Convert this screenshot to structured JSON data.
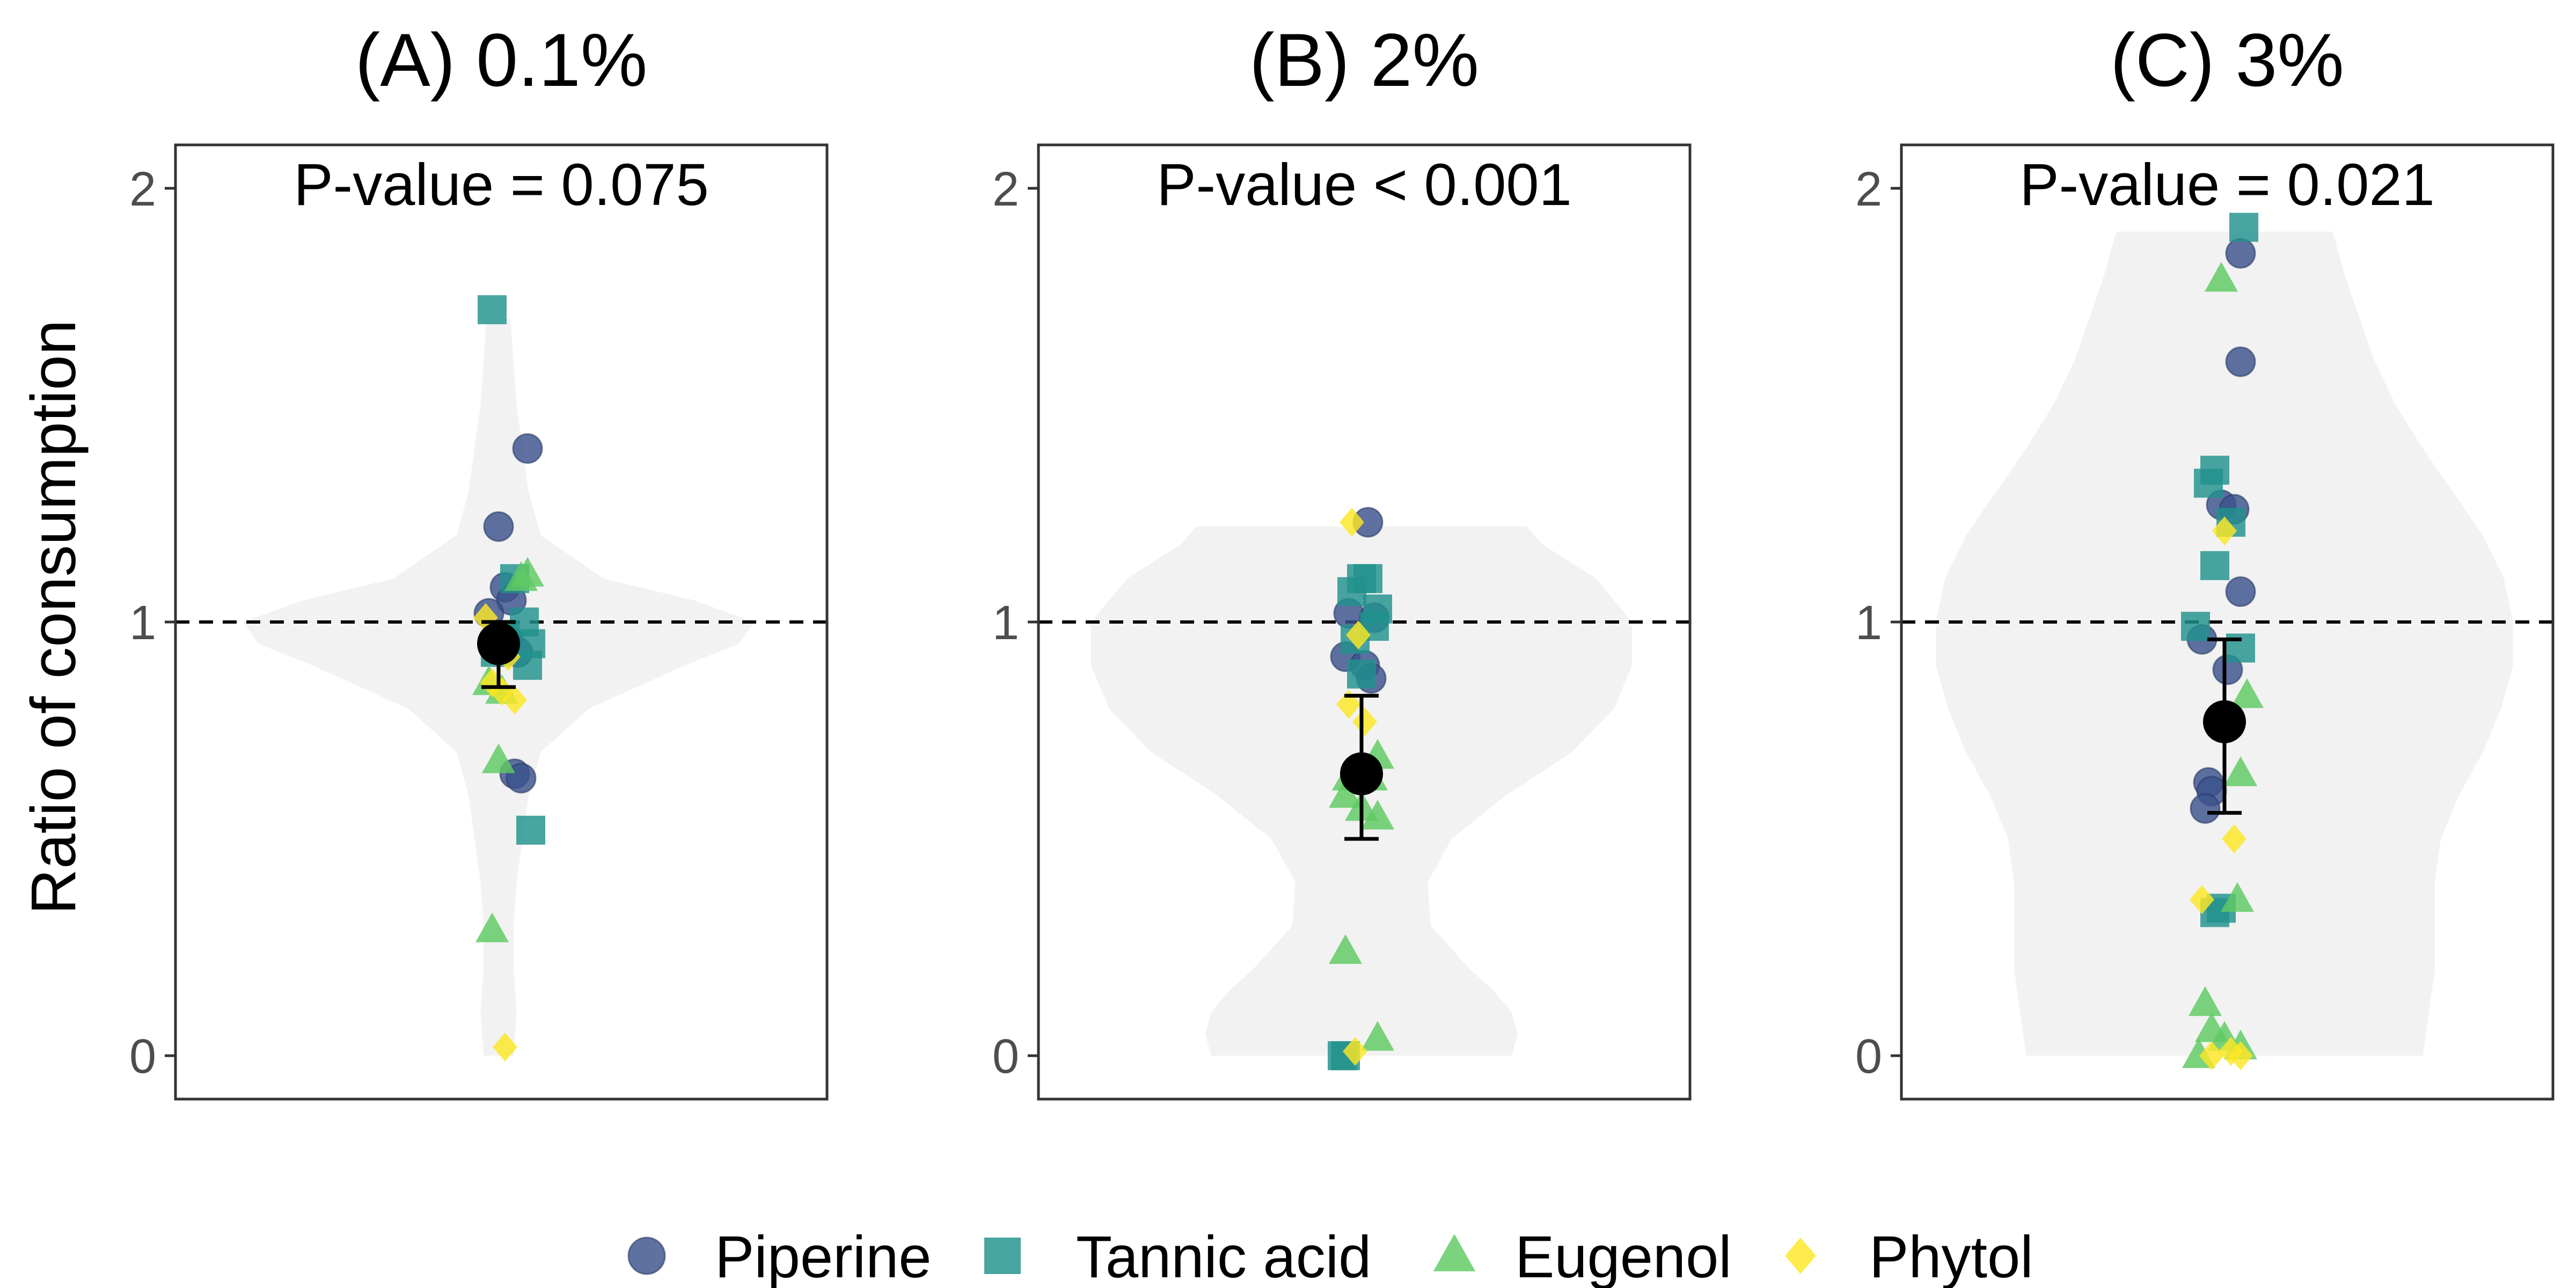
{
  "figure": {
    "ylabel": "Ratio of consumption",
    "legend": {
      "position": "bottom",
      "items": [
        {
          "name": "Piperine",
          "shape": "circle",
          "color": "#3B528B"
        },
        {
          "name": "Tannic acid",
          "shape": "square",
          "color": "#21918C"
        },
        {
          "name": "Eugenol",
          "shape": "triangle",
          "color": "#5EC962"
        },
        {
          "name": "Phytol",
          "shape": "diamond",
          "color": "#FDE725"
        }
      ]
    },
    "colors": {
      "violin": "#F2F2F2",
      "mean": "#000000",
      "reference_line": "#000000"
    }
  },
  "chart_data": [
    {
      "type": "scatter",
      "panel_title": "(A) 0.1%",
      "annotation": "P-value = 0.075",
      "ylim": [
        -0.1,
        2.1
      ],
      "yticks": [
        0,
        1,
        2
      ],
      "reference_line_y": 1,
      "grid": false,
      "mean": 0.95,
      "ci": [
        0.85,
        1.0
      ],
      "violin": {
        "min": 0.0,
        "max": 1.7,
        "profile": [
          [
            0.0,
            0.05
          ],
          [
            0.1,
            0.06
          ],
          [
            0.2,
            0.05
          ],
          [
            0.3,
            0.05
          ],
          [
            0.4,
            0.06
          ],
          [
            0.5,
            0.08
          ],
          [
            0.6,
            0.1
          ],
          [
            0.7,
            0.14
          ],
          [
            0.8,
            0.3
          ],
          [
            0.9,
            0.62
          ],
          [
            0.95,
            0.8
          ],
          [
            1.0,
            0.85
          ],
          [
            1.05,
            0.65
          ],
          [
            1.1,
            0.35
          ],
          [
            1.2,
            0.14
          ],
          [
            1.3,
            0.1
          ],
          [
            1.4,
            0.08
          ],
          [
            1.5,
            0.06
          ],
          [
            1.6,
            0.05
          ],
          [
            1.7,
            0.04
          ]
        ]
      },
      "series": [
        {
          "name": "Piperine",
          "points": [
            [
              0.09,
              1.4
            ],
            [
              0.0,
              1.22
            ],
            [
              0.02,
              1.08
            ],
            [
              0.04,
              1.05
            ],
            [
              -0.03,
              1.02
            ],
            [
              0.03,
              0.96
            ],
            [
              0.06,
              0.93
            ],
            [
              0.05,
              0.65
            ],
            [
              0.07,
              0.64
            ]
          ]
        },
        {
          "name": "Tannic acid",
          "points": [
            [
              -0.02,
              1.72
            ],
            [
              0.05,
              1.1
            ],
            [
              0.08,
              1.0
            ],
            [
              0.02,
              0.97
            ],
            [
              0.1,
              0.95
            ],
            [
              -0.01,
              0.93
            ],
            [
              0.09,
              0.9
            ],
            [
              0.1,
              0.52
            ]
          ]
        },
        {
          "name": "Eugenol",
          "points": [
            [
              0.07,
              1.1
            ],
            [
              0.09,
              1.11
            ],
            [
              -0.03,
              0.86
            ],
            [
              0.01,
              0.84
            ],
            [
              0.0,
              0.68
            ],
            [
              -0.02,
              0.29
            ]
          ]
        },
        {
          "name": "Phytol",
          "points": [
            [
              -0.04,
              1.01
            ],
            [
              0.03,
              0.92
            ],
            [
              -0.02,
              0.86
            ],
            [
              0.01,
              0.84
            ],
            [
              0.05,
              0.82
            ],
            [
              0.02,
              0.02
            ]
          ]
        }
      ]
    },
    {
      "type": "scatter",
      "panel_title": "(B) 2%",
      "annotation": "P-value < 0.001",
      "ylim": [
        -0.1,
        2.1
      ],
      "yticks": [
        0,
        1,
        2
      ],
      "reference_line_y": 1,
      "grid": false,
      "mean": 0.65,
      "ci": [
        0.5,
        0.83
      ],
      "violin": {
        "min": 0.0,
        "max": 1.22,
        "profile": [
          [
            0.0,
            0.5
          ],
          [
            0.05,
            0.52
          ],
          [
            0.1,
            0.5
          ],
          [
            0.15,
            0.44
          ],
          [
            0.2,
            0.36
          ],
          [
            0.3,
            0.23
          ],
          [
            0.4,
            0.22
          ],
          [
            0.5,
            0.3
          ],
          [
            0.6,
            0.48
          ],
          [
            0.7,
            0.7
          ],
          [
            0.8,
            0.84
          ],
          [
            0.9,
            0.9
          ],
          [
            1.0,
            0.9
          ],
          [
            1.1,
            0.78
          ],
          [
            1.18,
            0.6
          ],
          [
            1.22,
            0.55
          ]
        ]
      },
      "series": [
        {
          "name": "Piperine",
          "points": [
            [
              0.02,
              1.23
            ],
            [
              -0.04,
              1.02
            ],
            [
              0.04,
              1.01
            ],
            [
              -0.05,
              0.92
            ],
            [
              0.01,
              0.9
            ],
            [
              0.03,
              0.87
            ]
          ]
        },
        {
          "name": "Tannic acid",
          "points": [
            [
              0.0,
              1.1
            ],
            [
              0.02,
              1.1
            ],
            [
              -0.03,
              1.07
            ],
            [
              0.05,
              1.03
            ],
            [
              0.04,
              0.99
            ],
            [
              -0.02,
              0.96
            ],
            [
              0.0,
              0.88
            ],
            [
              -0.06,
              0.0
            ],
            [
              -0.05,
              0.0
            ]
          ]
        },
        {
          "name": "Eugenol",
          "points": [
            [
              -0.04,
              0.64
            ],
            [
              0.03,
              0.64
            ],
            [
              0.05,
              0.69
            ],
            [
              0.0,
              0.57
            ],
            [
              0.05,
              0.55
            ],
            [
              -0.05,
              0.6
            ],
            [
              -0.05,
              0.24
            ],
            [
              0.05,
              0.04
            ]
          ]
        },
        {
          "name": "Phytol",
          "points": [
            [
              -0.03,
              1.23
            ],
            [
              -0.01,
              0.97
            ],
            [
              -0.04,
              0.81
            ],
            [
              0.01,
              0.77
            ],
            [
              -0.02,
              0.01
            ]
          ]
        }
      ]
    },
    {
      "type": "scatter",
      "panel_title": "(C) 3%",
      "annotation": "P-value = 0.021",
      "ylim": [
        -0.1,
        2.1
      ],
      "yticks": [
        0,
        1,
        2
      ],
      "reference_line_y": 1,
      "grid": false,
      "mean": 0.77,
      "ci": [
        0.56,
        0.96
      ],
      "violin": {
        "min": 0.0,
        "max": 1.9,
        "profile": [
          [
            0.0,
            0.66
          ],
          [
            0.05,
            0.67
          ],
          [
            0.1,
            0.68
          ],
          [
            0.2,
            0.7
          ],
          [
            0.3,
            0.7
          ],
          [
            0.4,
            0.7
          ],
          [
            0.5,
            0.72
          ],
          [
            0.6,
            0.78
          ],
          [
            0.7,
            0.86
          ],
          [
            0.8,
            0.92
          ],
          [
            0.9,
            0.96
          ],
          [
            1.0,
            0.96
          ],
          [
            1.1,
            0.93
          ],
          [
            1.2,
            0.86
          ],
          [
            1.3,
            0.76
          ],
          [
            1.4,
            0.66
          ],
          [
            1.5,
            0.57
          ],
          [
            1.6,
            0.5
          ],
          [
            1.7,
            0.45
          ],
          [
            1.8,
            0.4
          ],
          [
            1.9,
            0.36
          ]
        ]
      },
      "series": [
        {
          "name": "Piperine",
          "points": [
            [
              0.05,
              1.85
            ],
            [
              0.05,
              1.6
            ],
            [
              -0.01,
              1.27
            ],
            [
              0.03,
              1.26
            ],
            [
              0.05,
              1.07
            ],
            [
              -0.07,
              0.96
            ],
            [
              0.01,
              0.89
            ],
            [
              -0.05,
              0.63
            ],
            [
              -0.04,
              0.61
            ],
            [
              -0.06,
              0.57
            ]
          ]
        },
        {
          "name": "Tannic acid",
          "points": [
            [
              0.06,
              1.91
            ],
            [
              -0.03,
              1.35
            ],
            [
              -0.05,
              1.32
            ],
            [
              0.02,
              1.23
            ],
            [
              -0.03,
              1.13
            ],
            [
              -0.09,
              0.99
            ],
            [
              0.05,
              0.94
            ],
            [
              -0.01,
              0.34
            ],
            [
              -0.03,
              0.33
            ]
          ]
        },
        {
          "name": "Eugenol",
          "points": [
            [
              -0.01,
              1.79
            ],
            [
              0.07,
              0.83
            ],
            [
              0.05,
              0.65
            ],
            [
              0.04,
              0.36
            ],
            [
              -0.06,
              0.12
            ],
            [
              -0.04,
              0.06
            ],
            [
              0.0,
              0.04
            ],
            [
              -0.08,
              0.0
            ],
            [
              0.05,
              0.02
            ]
          ]
        },
        {
          "name": "Phytol",
          "points": [
            [
              0.0,
              1.21
            ],
            [
              0.03,
              0.5
            ],
            [
              -0.07,
              0.36
            ],
            [
              0.05,
              0.0
            ],
            [
              0.02,
              0.01
            ],
            [
              -0.04,
              0.0
            ]
          ]
        }
      ]
    }
  ]
}
